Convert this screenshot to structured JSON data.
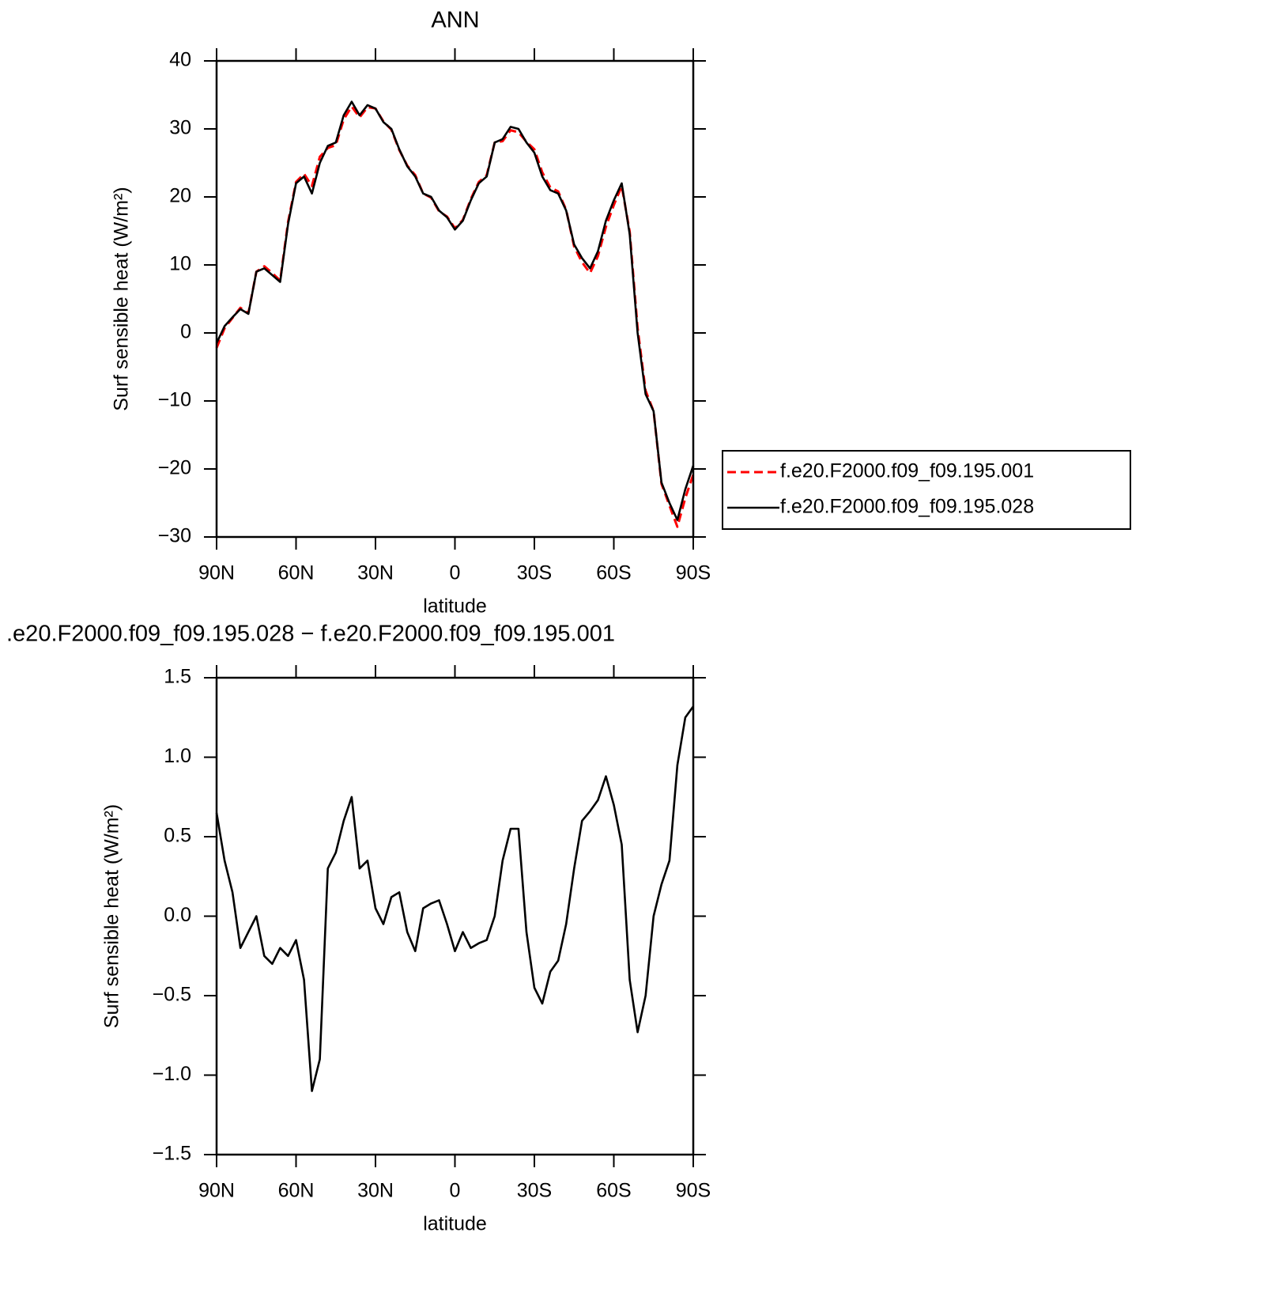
{
  "chart_data": [
    {
      "type": "line",
      "title": "ANN",
      "xlabel": "latitude",
      "ylabel": "Surf sensible heat (W/m²)",
      "x": [
        90,
        87,
        84,
        81,
        78,
        75,
        72,
        69,
        66,
        63,
        60,
        57,
        54,
        51,
        48,
        45,
        42,
        39,
        36,
        33,
        30,
        27,
        24,
        21,
        18,
        15,
        12,
        9,
        6,
        3,
        0,
        -3,
        -6,
        -9,
        -12,
        -15,
        -18,
        -21,
        -24,
        -27,
        -30,
        -33,
        -36,
        -39,
        -42,
        -45,
        -48,
        -51,
        -54,
        -57,
        -60,
        -63,
        -66,
        -69,
        -72,
        -75,
        -78,
        -81,
        -84,
        -87,
        -90
      ],
      "series": [
        {
          "name": "f.e20.F2000.f09_f09.195.001",
          "color": "#ff0000",
          "dash": true,
          "values": [
            -2.2,
            0.7,
            2.2,
            3.7,
            2.9,
            9,
            9.8,
            8.8,
            7.7,
            16.3,
            22.2,
            23.4,
            21.6,
            25.9,
            27.2,
            27.6,
            31.4,
            33.3,
            31.7,
            33.2,
            33.0,
            31.1,
            29.9,
            26.9,
            24.6,
            23.2,
            20.5,
            19.9,
            17.9,
            17.1,
            15.4,
            16.6,
            19.7,
            22.2,
            23.2,
            28,
            28.2,
            29.8,
            29.5,
            28.1,
            27.0,
            23.6,
            21.4,
            20.8,
            18.1,
            12.7,
            10.4,
            8.8,
            11.3,
            15.6,
            18.8,
            21.6,
            14.9,
            0.7,
            -8.5,
            -11.5,
            -22.2,
            -25.4,
            -28.5,
            -24.3,
            -20.8
          ]
        },
        {
          "name": "f.e20.F2000.f09_f09.195.028",
          "color": "#000000",
          "dash": false,
          "values": [
            -1.5,
            1,
            2.3,
            3.5,
            2.8,
            9,
            9.5,
            8.5,
            7.5,
            16,
            22,
            23,
            20.5,
            25,
            27.5,
            28,
            32,
            34,
            32,
            33.5,
            33,
            31,
            30,
            27,
            24.5,
            23,
            20.5,
            20,
            18,
            17,
            15.2,
            16.5,
            19.5,
            22,
            23,
            28,
            28.5,
            30.3,
            30,
            28,
            26.5,
            23,
            21,
            20.5,
            18,
            13,
            11,
            9.5,
            12,
            16.5,
            19.5,
            22,
            14.5,
            0,
            -9,
            -11.5,
            -22,
            -25,
            -27.5,
            -23,
            -19.5
          ]
        }
      ],
      "xlim": [
        90,
        -90
      ],
      "xticks": [
        {
          "value": 90,
          "label": "90N"
        },
        {
          "value": 60,
          "label": "60N"
        },
        {
          "value": 30,
          "label": "30N"
        },
        0,
        {
          "value": -30,
          "label": "30S"
        },
        {
          "value": -60,
          "label": "60S"
        },
        {
          "value": -90,
          "label": "90S"
        }
      ],
      "ylim": [
        -30,
        40
      ],
      "yticks": [
        {
          "value": -30,
          "label": "−30"
        },
        {
          "value": -20,
          "label": "−20"
        },
        {
          "value": -10,
          "label": "−10"
        },
        0,
        10,
        20,
        30,
        40
      ],
      "legend": "outside-right"
    },
    {
      "type": "line",
      "title": ".e20.F2000.f09_f09.195.028 − f.e20.F2000.f09_f09.195.001",
      "xlabel": "latitude",
      "ylabel": "Surf sensible heat (W/m²)",
      "x": [
        90,
        87,
        84,
        81,
        78,
        75,
        72,
        69,
        66,
        63,
        60,
        57,
        54,
        51,
        48,
        45,
        42,
        39,
        36,
        33,
        30,
        27,
        24,
        21,
        18,
        15,
        12,
        9,
        6,
        3,
        0,
        -3,
        -6,
        -9,
        -12,
        -15,
        -18,
        -21,
        -24,
        -27,
        -30,
        -33,
        -36,
        -39,
        -42,
        -45,
        -48,
        -51,
        -54,
        -57,
        -60,
        -63,
        -66,
        -69,
        -72,
        -75,
        -78,
        -81,
        -84,
        -87,
        -90
      ],
      "series": [
        {
          "color": "#000000",
          "dash": false,
          "values": [
            0.65,
            0.35,
            0.15,
            -0.2,
            -0.1,
            0,
            -0.25,
            -0.3,
            -0.2,
            -0.25,
            -0.15,
            -0.4,
            -1.1,
            -0.9,
            0.3,
            0.4,
            0.6,
            0.75,
            0.3,
            0.35,
            0.05,
            -0.05,
            0.12,
            0.15,
            -0.1,
            -0.22,
            0.05,
            0.08,
            0.1,
            -0.05,
            -0.22,
            -0.1,
            -0.2,
            -0.17,
            -0.15,
            0.0,
            0.35,
            0.55,
            0.55,
            -0.1,
            -0.45,
            -0.55,
            -0.35,
            -0.28,
            -0.05,
            0.3,
            0.6,
            0.66,
            0.73,
            0.88,
            0.7,
            0.45,
            -0.4,
            -0.73,
            -0.5,
            0.0,
            0.2,
            0.35,
            0.95,
            1.25,
            1.32
          ]
        }
      ],
      "xlim": [
        90,
        -90
      ],
      "xticks": [
        {
          "value": 90,
          "label": "90N"
        },
        {
          "value": 60,
          "label": "60N"
        },
        {
          "value": 30,
          "label": "30N"
        },
        0,
        {
          "value": -30,
          "label": "30S"
        },
        {
          "value": -60,
          "label": "60S"
        },
        {
          "value": -90,
          "label": "90S"
        }
      ],
      "ylim": [
        -1.5,
        1.5
      ],
      "yticks": [
        {
          "value": -1.5,
          "label": "−1.5"
        },
        {
          "value": -1.0,
          "label": "−1.0"
        },
        {
          "value": -0.5,
          "label": "−0.5"
        },
        {
          "value": 0,
          "label": "0.0"
        },
        0.5,
        {
          "value": 1.0,
          "label": "1.0"
        },
        1.5
      ]
    }
  ]
}
